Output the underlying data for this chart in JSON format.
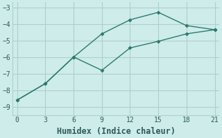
{
  "line1_x": [
    0,
    3,
    6,
    9,
    12,
    15,
    18,
    21
  ],
  "line1_y": [
    -8.6,
    -7.6,
    -6.0,
    -4.6,
    -3.75,
    -3.3,
    -4.1,
    -4.35
  ],
  "line2_x": [
    0,
    3,
    6,
    9,
    12,
    15,
    18,
    21
  ],
  "line2_y": [
    -8.6,
    -7.6,
    -6.0,
    -6.8,
    -5.45,
    -5.05,
    -4.6,
    -4.35
  ],
  "line_color": "#2a7a6f",
  "marker": "D",
  "marker_size": 2.5,
  "xlabel": "Humidex (Indice chaleur)",
  "xlim": [
    -0.5,
    21.5
  ],
  "ylim": [
    -9.5,
    -2.7
  ],
  "xticks": [
    0,
    3,
    6,
    9,
    12,
    15,
    18,
    21
  ],
  "yticks": [
    -9,
    -8,
    -7,
    -6,
    -5,
    -4,
    -3
  ],
  "bg_color": "#ceecea",
  "grid_color": "#aecfcc",
  "tick_color": "#2a5a5a",
  "xlabel_fontsize": 8.5
}
